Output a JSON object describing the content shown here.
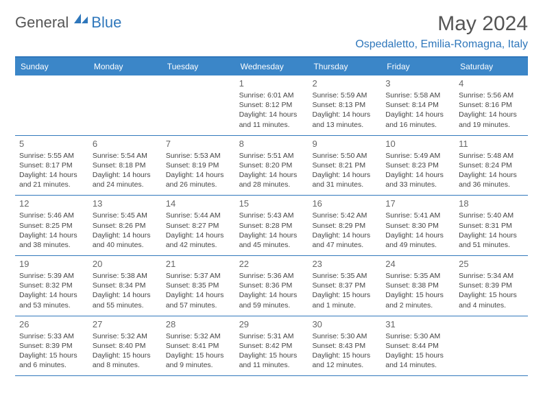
{
  "logo": {
    "general": "General",
    "blue": "Blue"
  },
  "colors": {
    "accent": "#3b86c8",
    "border": "#2f77bb",
    "text": "#444444",
    "headerText": "#ffffff"
  },
  "title": "May 2024",
  "location": "Ospedaletto, Emilia-Romagna, Italy",
  "weekdays": [
    "Sunday",
    "Monday",
    "Tuesday",
    "Wednesday",
    "Thursday",
    "Friday",
    "Saturday"
  ],
  "weeks": [
    [
      {
        "num": "",
        "lines": []
      },
      {
        "num": "",
        "lines": []
      },
      {
        "num": "",
        "lines": []
      },
      {
        "num": "1",
        "lines": [
          "Sunrise: 6:01 AM",
          "Sunset: 8:12 PM",
          "Daylight: 14 hours",
          "and 11 minutes."
        ]
      },
      {
        "num": "2",
        "lines": [
          "Sunrise: 5:59 AM",
          "Sunset: 8:13 PM",
          "Daylight: 14 hours",
          "and 13 minutes."
        ]
      },
      {
        "num": "3",
        "lines": [
          "Sunrise: 5:58 AM",
          "Sunset: 8:14 PM",
          "Daylight: 14 hours",
          "and 16 minutes."
        ]
      },
      {
        "num": "4",
        "lines": [
          "Sunrise: 5:56 AM",
          "Sunset: 8:16 PM",
          "Daylight: 14 hours",
          "and 19 minutes."
        ]
      }
    ],
    [
      {
        "num": "5",
        "lines": [
          "Sunrise: 5:55 AM",
          "Sunset: 8:17 PM",
          "Daylight: 14 hours",
          "and 21 minutes."
        ]
      },
      {
        "num": "6",
        "lines": [
          "Sunrise: 5:54 AM",
          "Sunset: 8:18 PM",
          "Daylight: 14 hours",
          "and 24 minutes."
        ]
      },
      {
        "num": "7",
        "lines": [
          "Sunrise: 5:53 AM",
          "Sunset: 8:19 PM",
          "Daylight: 14 hours",
          "and 26 minutes."
        ]
      },
      {
        "num": "8",
        "lines": [
          "Sunrise: 5:51 AM",
          "Sunset: 8:20 PM",
          "Daylight: 14 hours",
          "and 28 minutes."
        ]
      },
      {
        "num": "9",
        "lines": [
          "Sunrise: 5:50 AM",
          "Sunset: 8:21 PM",
          "Daylight: 14 hours",
          "and 31 minutes."
        ]
      },
      {
        "num": "10",
        "lines": [
          "Sunrise: 5:49 AM",
          "Sunset: 8:23 PM",
          "Daylight: 14 hours",
          "and 33 minutes."
        ]
      },
      {
        "num": "11",
        "lines": [
          "Sunrise: 5:48 AM",
          "Sunset: 8:24 PM",
          "Daylight: 14 hours",
          "and 36 minutes."
        ]
      }
    ],
    [
      {
        "num": "12",
        "lines": [
          "Sunrise: 5:46 AM",
          "Sunset: 8:25 PM",
          "Daylight: 14 hours",
          "and 38 minutes."
        ]
      },
      {
        "num": "13",
        "lines": [
          "Sunrise: 5:45 AM",
          "Sunset: 8:26 PM",
          "Daylight: 14 hours",
          "and 40 minutes."
        ]
      },
      {
        "num": "14",
        "lines": [
          "Sunrise: 5:44 AM",
          "Sunset: 8:27 PM",
          "Daylight: 14 hours",
          "and 42 minutes."
        ]
      },
      {
        "num": "15",
        "lines": [
          "Sunrise: 5:43 AM",
          "Sunset: 8:28 PM",
          "Daylight: 14 hours",
          "and 45 minutes."
        ]
      },
      {
        "num": "16",
        "lines": [
          "Sunrise: 5:42 AM",
          "Sunset: 8:29 PM",
          "Daylight: 14 hours",
          "and 47 minutes."
        ]
      },
      {
        "num": "17",
        "lines": [
          "Sunrise: 5:41 AM",
          "Sunset: 8:30 PM",
          "Daylight: 14 hours",
          "and 49 minutes."
        ]
      },
      {
        "num": "18",
        "lines": [
          "Sunrise: 5:40 AM",
          "Sunset: 8:31 PM",
          "Daylight: 14 hours",
          "and 51 minutes."
        ]
      }
    ],
    [
      {
        "num": "19",
        "lines": [
          "Sunrise: 5:39 AM",
          "Sunset: 8:32 PM",
          "Daylight: 14 hours",
          "and 53 minutes."
        ]
      },
      {
        "num": "20",
        "lines": [
          "Sunrise: 5:38 AM",
          "Sunset: 8:34 PM",
          "Daylight: 14 hours",
          "and 55 minutes."
        ]
      },
      {
        "num": "21",
        "lines": [
          "Sunrise: 5:37 AM",
          "Sunset: 8:35 PM",
          "Daylight: 14 hours",
          "and 57 minutes."
        ]
      },
      {
        "num": "22",
        "lines": [
          "Sunrise: 5:36 AM",
          "Sunset: 8:36 PM",
          "Daylight: 14 hours",
          "and 59 minutes."
        ]
      },
      {
        "num": "23",
        "lines": [
          "Sunrise: 5:35 AM",
          "Sunset: 8:37 PM",
          "Daylight: 15 hours",
          "and 1 minute."
        ]
      },
      {
        "num": "24",
        "lines": [
          "Sunrise: 5:35 AM",
          "Sunset: 8:38 PM",
          "Daylight: 15 hours",
          "and 2 minutes."
        ]
      },
      {
        "num": "25",
        "lines": [
          "Sunrise: 5:34 AM",
          "Sunset: 8:39 PM",
          "Daylight: 15 hours",
          "and 4 minutes."
        ]
      }
    ],
    [
      {
        "num": "26",
        "lines": [
          "Sunrise: 5:33 AM",
          "Sunset: 8:39 PM",
          "Daylight: 15 hours",
          "and 6 minutes."
        ]
      },
      {
        "num": "27",
        "lines": [
          "Sunrise: 5:32 AM",
          "Sunset: 8:40 PM",
          "Daylight: 15 hours",
          "and 8 minutes."
        ]
      },
      {
        "num": "28",
        "lines": [
          "Sunrise: 5:32 AM",
          "Sunset: 8:41 PM",
          "Daylight: 15 hours",
          "and 9 minutes."
        ]
      },
      {
        "num": "29",
        "lines": [
          "Sunrise: 5:31 AM",
          "Sunset: 8:42 PM",
          "Daylight: 15 hours",
          "and 11 minutes."
        ]
      },
      {
        "num": "30",
        "lines": [
          "Sunrise: 5:30 AM",
          "Sunset: 8:43 PM",
          "Daylight: 15 hours",
          "and 12 minutes."
        ]
      },
      {
        "num": "31",
        "lines": [
          "Sunrise: 5:30 AM",
          "Sunset: 8:44 PM",
          "Daylight: 15 hours",
          "and 14 minutes."
        ]
      },
      {
        "num": "",
        "lines": []
      }
    ]
  ]
}
